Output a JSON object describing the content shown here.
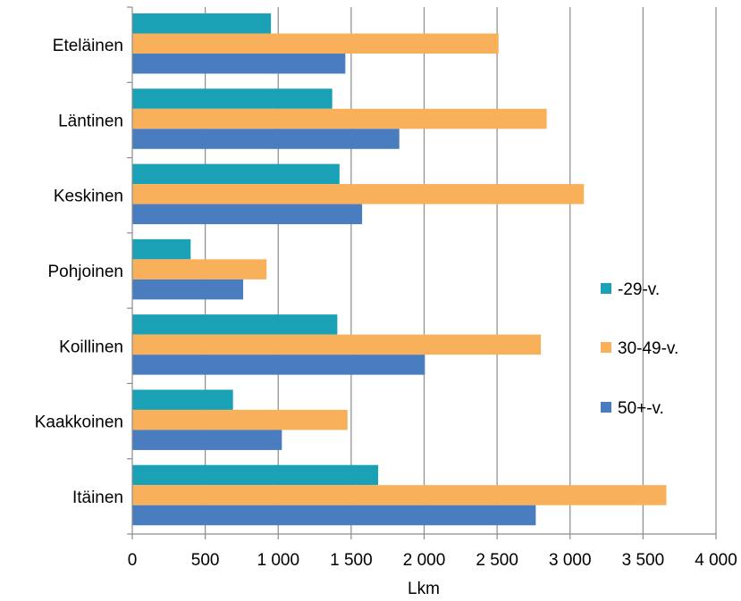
{
  "chart_data": {
    "type": "bar",
    "orientation": "horizontal",
    "categories": [
      "Eteläinen",
      "Läntinen",
      "Keskinen",
      "Pohjoinen",
      "Koillinen",
      "Kaakkoinen",
      "Itäinen"
    ],
    "series": [
      {
        "name": "-29-v.",
        "color": "#1aa1b5",
        "values": [
          950,
          1370,
          1420,
          400,
          1405,
          690,
          1685
        ]
      },
      {
        "name": "30-49-v.",
        "color": "#f9b05a",
        "values": [
          2510,
          2840,
          3095,
          920,
          2800,
          1475,
          3660
        ]
      },
      {
        "name": "50+-v.",
        "color": "#4a7cc0",
        "values": [
          1460,
          1830,
          1575,
          760,
          2005,
          1025,
          2765
        ]
      }
    ],
    "xlabel": "Lkm",
    "ylabel": "",
    "xlim": [
      0,
      4000
    ],
    "x_ticks": [
      0,
      500,
      1000,
      1500,
      2000,
      2500,
      3000,
      3500,
      4000
    ],
    "x_tick_labels": [
      "0",
      "500",
      "1 000",
      "1 500",
      "2 000",
      "2 500",
      "3 000",
      "3 500",
      "4 000"
    ],
    "grid": true,
    "legend_position": "right"
  }
}
